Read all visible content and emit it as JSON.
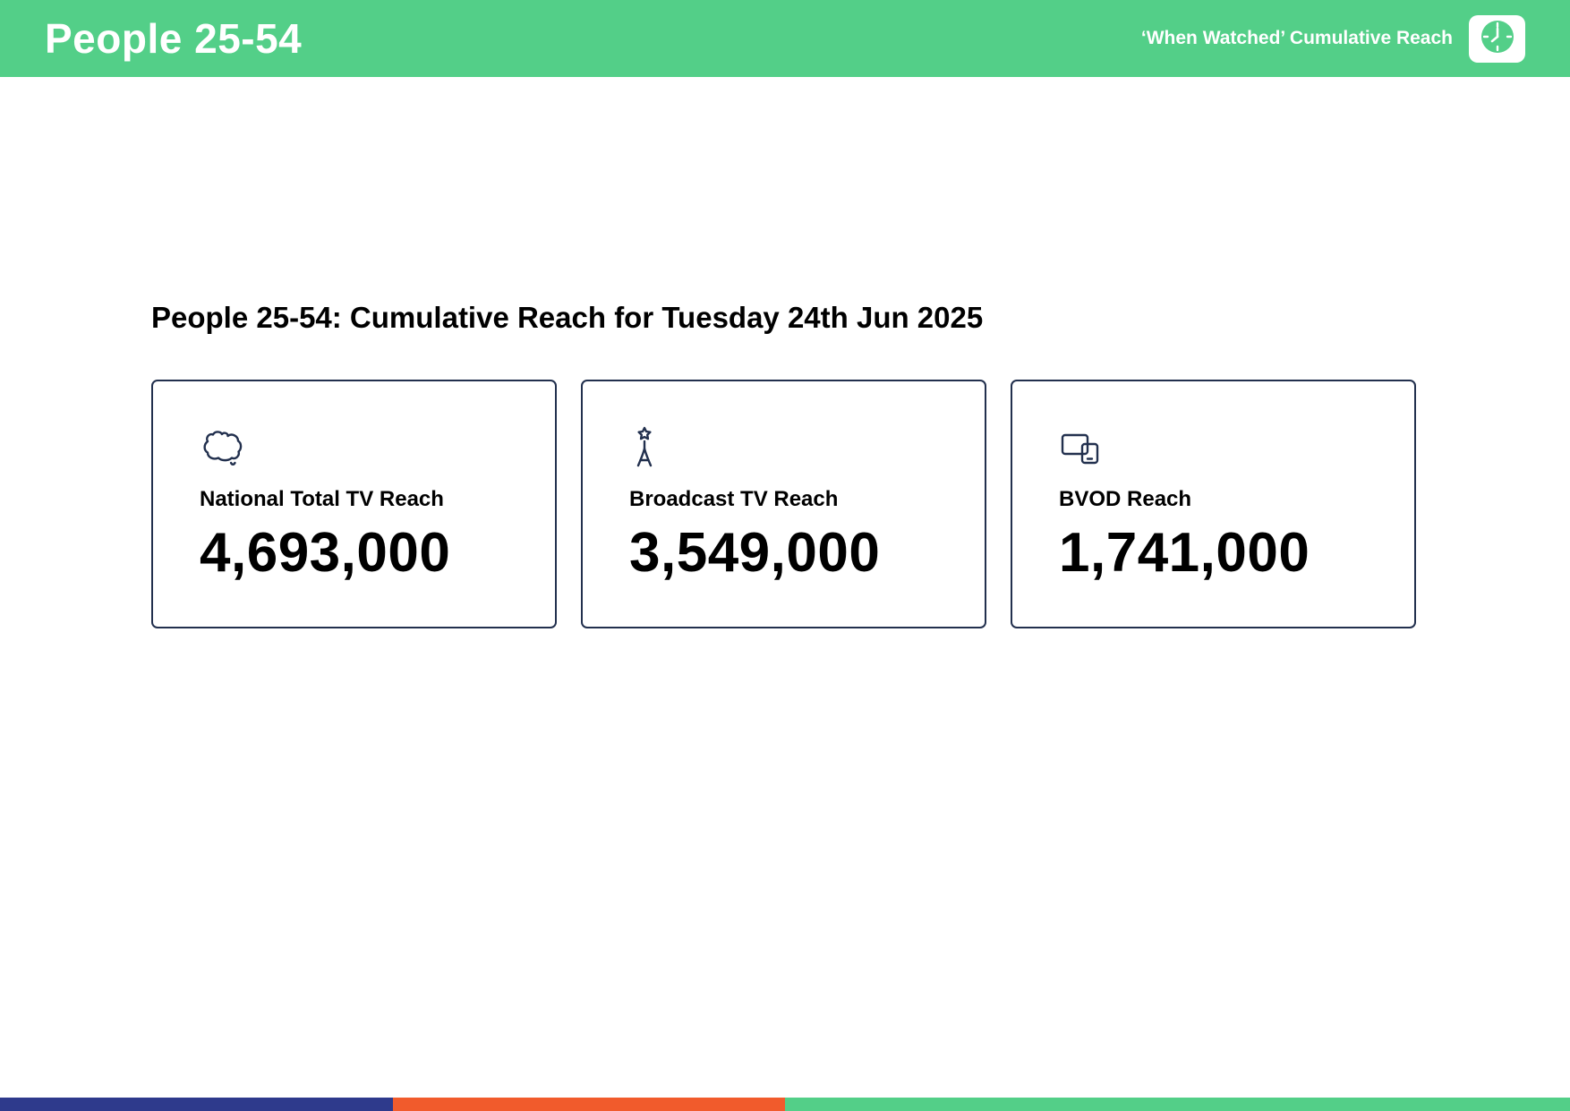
{
  "header": {
    "title": "People 25-54",
    "subtitle": "‘When Watched’ Cumulative Reach",
    "bg_color": "#53cf88",
    "badge_icon": "clock-icon",
    "badge_circle_color": "#53cf88"
  },
  "main": {
    "heading": "People 25-54: Cumulative Reach for Tuesday 24th Jun 2025",
    "cards": [
      {
        "icon": "australia-map-icon",
        "label": "National Total TV Reach",
        "value": "4,693,000"
      },
      {
        "icon": "broadcast-tower-icon",
        "label": "Broadcast TV Reach",
        "value": "3,549,000"
      },
      {
        "icon": "screens-icon",
        "label": "BVOD Reach",
        "value": "1,741,000"
      }
    ]
  },
  "footer": {
    "segments": [
      {
        "color": "#2e3a8c",
        "width_pct": 25
      },
      {
        "color": "#f15b2c",
        "width_pct": 25
      },
      {
        "color": "#53cf88",
        "width_pct": 50
      }
    ]
  }
}
